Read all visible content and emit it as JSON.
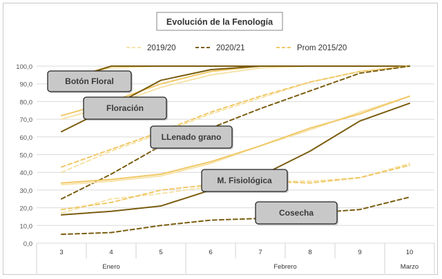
{
  "chart_data": {
    "type": "line",
    "title": "Evolución  de la Fenología",
    "x": [
      "3",
      "4",
      "5",
      "6",
      "7",
      "8",
      "9",
      "10"
    ],
    "x_groups": [
      {
        "label": "Enero",
        "from": 0,
        "to": 2
      },
      {
        "label": "Febrero",
        "from": 3,
        "to": 6
      },
      {
        "label": "Marzo",
        "from": 7,
        "to": 7
      }
    ],
    "ylim": [
      0,
      100
    ],
    "yticks": [
      "0,0",
      "10,0",
      "20,0",
      "30,0",
      "40,0",
      "50,0",
      "60,0",
      "70,0",
      "80,0",
      "90,0",
      "100,0"
    ],
    "grid": true,
    "legend_position": "top",
    "legend": [
      {
        "name": "2019/20",
        "color": "#f6e3a8",
        "dash": "dashed"
      },
      {
        "name": "2020/21",
        "color": "#7a5c0e",
        "dash": "dashed"
      },
      {
        "name": "Prom 2015/20",
        "color": "#f0c866",
        "dash": "dashed"
      }
    ],
    "phases": [
      {
        "label": "Botón Floral",
        "series": [
          {
            "color": "#f6e3a8",
            "dash": "solid",
            "values": [
              93,
              99,
              100,
              100,
              100,
              100,
              100,
              100
            ]
          },
          {
            "color": "#7a5c0e",
            "dash": "solid",
            "values": [
              91,
              100,
              100,
              100,
              100,
              100,
              100,
              100
            ]
          },
          {
            "color": "#f0c866",
            "dash": "solid",
            "values": [
              92,
              100,
              100,
              100,
              100,
              100,
              100,
              100
            ]
          }
        ]
      },
      {
        "label": "Floración",
        "series": [
          {
            "color": "#f6e3a8",
            "dash": "solid",
            "values": [
              70,
              78,
              88,
              95,
              99,
              100,
              100,
              100
            ]
          },
          {
            "color": "#7a5c0e",
            "dash": "solid",
            "values": [
              63,
              77,
              92,
              98,
              100,
              100,
              100,
              100
            ]
          },
          {
            "color": "#f0c866",
            "dash": "solid",
            "values": [
              72,
              80,
              90,
              97,
              100,
              100,
              100,
              100
            ]
          }
        ]
      },
      {
        "label": "LLenado grano",
        "series": [
          {
            "color": "#f6e3a8",
            "dash": "dashed",
            "values": [
              40,
              52,
              62,
              73,
              82,
              91,
              97,
              100
            ]
          },
          {
            "color": "#7a5c0e",
            "dash": "dashed",
            "values": [
              25,
              39,
              55,
              65,
              76,
              86,
              96,
              100
            ]
          },
          {
            "color": "#f0c866",
            "dash": "dashed",
            "values": [
              43,
              53,
              63,
              74,
              83,
              91,
              97,
              100
            ]
          }
        ]
      },
      {
        "label": "M. Fisiológica",
        "series": [
          {
            "color": "#f6e3a8",
            "dash": "solid",
            "values": [
              33,
              35,
              38,
              45,
              55,
              64,
              74,
              83
            ]
          },
          {
            "color": "#7a5c0e",
            "dash": "solid",
            "values": [
              16,
              18,
              21,
              30,
              38,
              52,
              69,
              79
            ]
          },
          {
            "color": "#f0c866",
            "dash": "solid",
            "values": [
              34,
              36,
              39,
              46,
              55,
              65,
              73,
              83
            ]
          }
        ]
      },
      {
        "label": "Cosecha",
        "series": [
          {
            "color": "#f6e3a8",
            "dash": "dashed",
            "values": [
              17,
              25,
              28,
              32,
              35,
              35,
              37,
              45
            ]
          },
          {
            "color": "#7a5c0e",
            "dash": "dashed",
            "values": [
              5,
              6,
              10,
              13,
              14,
              17,
              19,
              26
            ]
          },
          {
            "color": "#f0c866",
            "dash": "dashed",
            "values": [
              19,
              23,
              30,
              33,
              35,
              34,
              37,
              44
            ]
          }
        ]
      }
    ]
  }
}
